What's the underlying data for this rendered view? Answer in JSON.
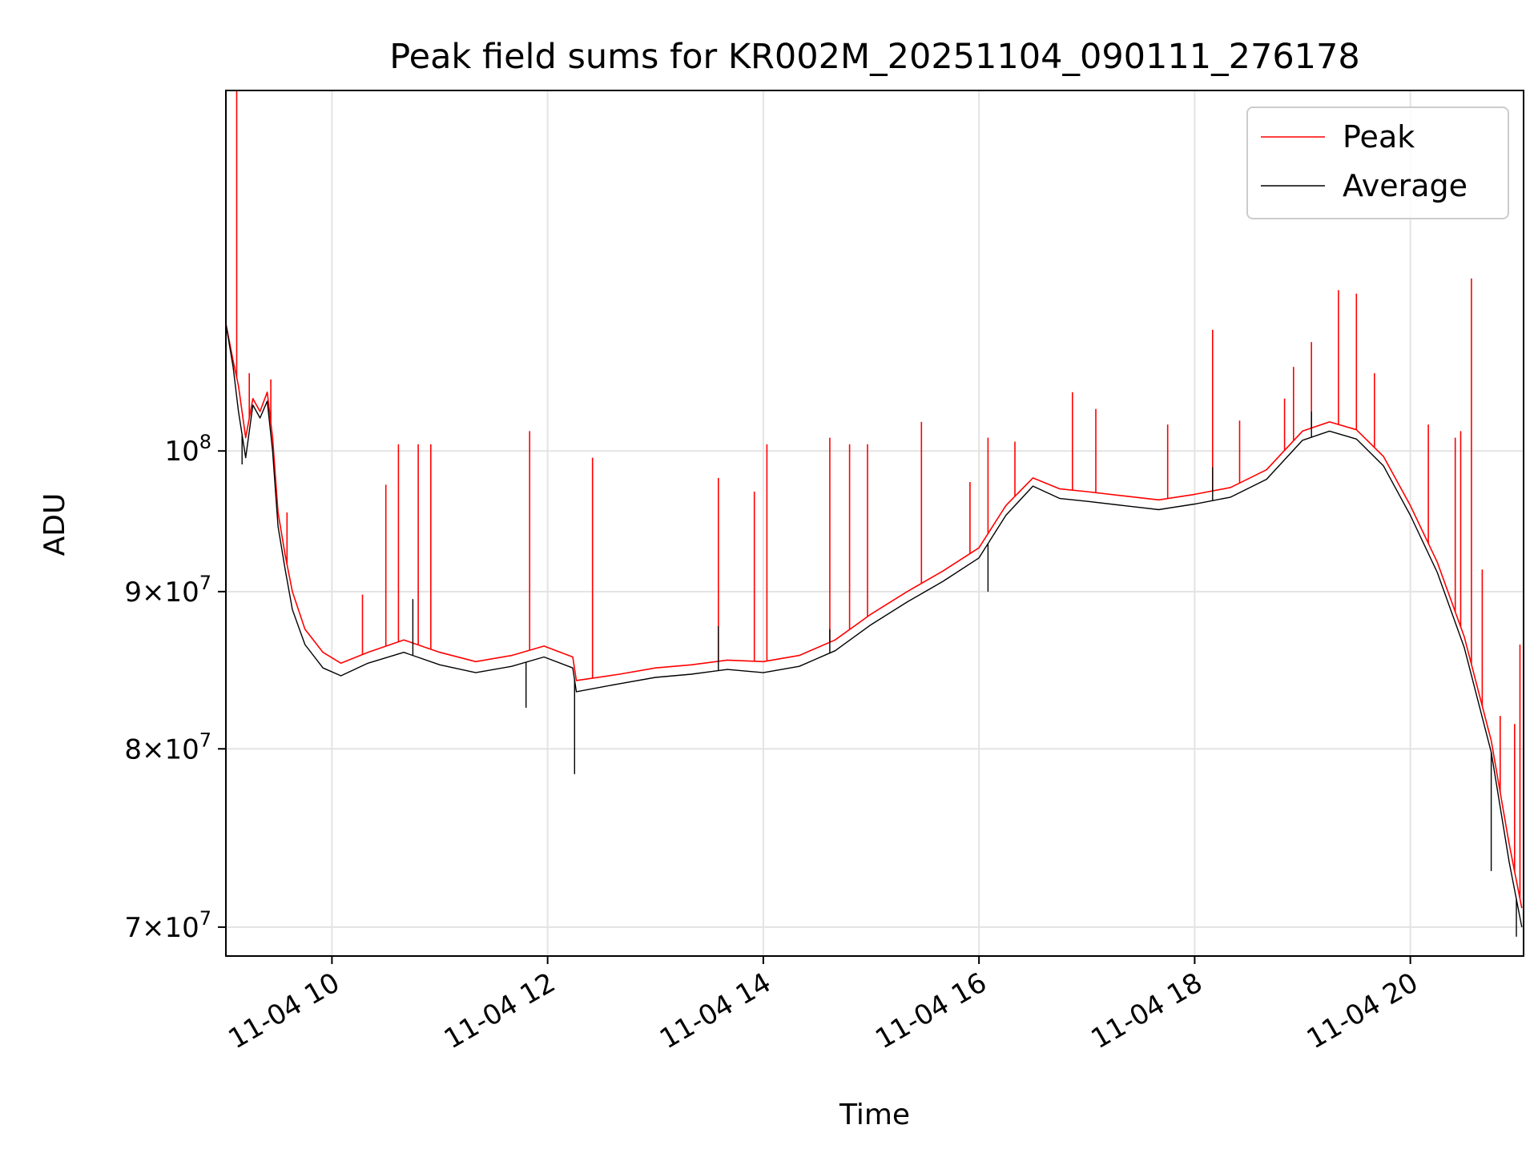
{
  "chart_data": {
    "type": "line",
    "title": "Peak field sums for KR002M_20251104_090111_276178",
    "xlabel": "Time",
    "ylabel": "ADU",
    "x_scale": "time",
    "y_scale": "log",
    "xlim": [
      "2025-11-04 09:01",
      "2025-11-04 21:03"
    ],
    "ylim": [
      68500000,
      131000000
    ],
    "x_ticks": [
      {
        "value": "2025-11-04 10:00",
        "label": "11-04 10"
      },
      {
        "value": "2025-11-04 12:00",
        "label": "11-04 12"
      },
      {
        "value": "2025-11-04 14:00",
        "label": "11-04 14"
      },
      {
        "value": "2025-11-04 16:00",
        "label": "11-04 16"
      },
      {
        "value": "2025-11-04 18:00",
        "label": "11-04 18"
      },
      {
        "value": "2025-11-04 20:00",
        "label": "11-04 20"
      }
    ],
    "y_ticks": [
      {
        "value": 70000000,
        "label_mant": "7",
        "label_exp": "7"
      },
      {
        "value": 80000000,
        "label_mant": "8",
        "label_exp": "7"
      },
      {
        "value": 90000000,
        "label_mant": "9",
        "label_exp": "7"
      },
      {
        "value": 100000000,
        "label_mant": "",
        "label_exp": "8"
      }
    ],
    "grid": true,
    "legend_position": "top-right",
    "series": [
      {
        "name": "Peak",
        "color": "#ff0000",
        "points": [
          [
            "2025-11-04 09:01",
            110000000
          ],
          [
            "2025-11-04 09:05",
            107000000
          ],
          [
            "2025-11-04 09:08",
            105000000
          ],
          [
            "2025-11-04 09:12",
            101000000
          ],
          [
            "2025-11-04 09:16",
            104000000
          ],
          [
            "2025-11-04 09:20",
            103000000
          ],
          [
            "2025-11-04 09:24",
            104500000
          ],
          [
            "2025-11-04 09:27",
            101000000
          ],
          [
            "2025-11-04 09:30",
            95500000
          ],
          [
            "2025-11-04 09:34",
            92500000
          ],
          [
            "2025-11-04 09:38",
            90000000
          ],
          [
            "2025-11-04 09:45",
            87500000
          ],
          [
            "2025-11-04 09:55",
            86000000
          ],
          [
            "2025-11-04 10:05",
            85300000
          ],
          [
            "2025-11-04 10:20",
            86000000
          ],
          [
            "2025-11-04 10:40",
            86800000
          ],
          [
            "2025-11-04 11:00",
            86000000
          ],
          [
            "2025-11-04 11:20",
            85400000
          ],
          [
            "2025-11-04 11:40",
            85800000
          ],
          [
            "2025-11-04 11:58",
            86400000
          ],
          [
            "2025-11-04 12:14",
            85700000
          ],
          [
            "2025-11-04 12:16",
            84200000
          ],
          [
            "2025-11-04 12:40",
            84600000
          ],
          [
            "2025-11-04 13:00",
            85000000
          ],
          [
            "2025-11-04 13:20",
            85200000
          ],
          [
            "2025-11-04 13:40",
            85500000
          ],
          [
            "2025-11-04 14:00",
            85400000
          ],
          [
            "2025-11-04 14:20",
            85800000
          ],
          [
            "2025-11-04 14:40",
            86800000
          ],
          [
            "2025-11-04 15:00",
            88500000
          ],
          [
            "2025-11-04 15:20",
            90000000
          ],
          [
            "2025-11-04 15:40",
            91400000
          ],
          [
            "2025-11-04 16:00",
            93000000
          ],
          [
            "2025-11-04 16:15",
            96000000
          ],
          [
            "2025-11-04 16:30",
            98000000
          ],
          [
            "2025-11-04 16:45",
            97200000
          ],
          [
            "2025-11-04 17:00",
            97000000
          ],
          [
            "2025-11-04 17:20",
            96700000
          ],
          [
            "2025-11-04 17:40",
            96400000
          ],
          [
            "2025-11-04 18:00",
            96800000
          ],
          [
            "2025-11-04 18:20",
            97300000
          ],
          [
            "2025-11-04 18:40",
            98600000
          ],
          [
            "2025-11-04 19:00",
            101500000
          ],
          [
            "2025-11-04 19:15",
            102200000
          ],
          [
            "2025-11-04 19:30",
            101600000
          ],
          [
            "2025-11-04 19:45",
            99600000
          ],
          [
            "2025-11-04 20:00",
            96000000
          ],
          [
            "2025-11-04 20:15",
            92000000
          ],
          [
            "2025-11-04 20:30",
            87000000
          ],
          [
            "2025-11-04 20:45",
            80500000
          ],
          [
            "2025-11-04 20:55",
            74500000
          ],
          [
            "2025-11-04 21:02",
            71000000
          ]
        ],
        "spikes": [
          [
            "2025-11-04 09:07",
            131000000
          ],
          [
            "2025-11-04 09:14",
            106000000
          ],
          [
            "2025-11-04 09:26",
            105500000
          ],
          [
            "2025-11-04 09:35",
            95500000
          ],
          [
            "2025-11-04 10:17",
            89800000
          ],
          [
            "2025-11-04 10:30",
            97500000
          ],
          [
            "2025-11-04 10:37",
            100500000
          ],
          [
            "2025-11-04 10:48",
            100500000
          ],
          [
            "2025-11-04 10:55",
            100500000
          ],
          [
            "2025-11-04 11:50",
            101500000
          ],
          [
            "2025-11-04 12:25",
            99500000
          ],
          [
            "2025-11-04 13:35",
            98000000
          ],
          [
            "2025-11-04 13:55",
            97000000
          ],
          [
            "2025-11-04 14:02",
            100500000
          ],
          [
            "2025-11-04 14:37",
            101000000
          ],
          [
            "2025-11-04 14:48",
            100500000
          ],
          [
            "2025-11-04 14:58",
            100500000
          ],
          [
            "2025-11-04 15:28",
            102200000
          ],
          [
            "2025-11-04 15:55",
            97700000
          ],
          [
            "2025-11-04 16:05",
            101000000
          ],
          [
            "2025-11-04 16:20",
            100700000
          ],
          [
            "2025-11-04 16:52",
            104500000
          ],
          [
            "2025-11-04 17:05",
            103200000
          ],
          [
            "2025-11-04 17:45",
            102000000
          ],
          [
            "2025-11-04 18:10",
            109500000
          ],
          [
            "2025-11-04 18:25",
            102300000
          ],
          [
            "2025-11-04 18:50",
            104000000
          ],
          [
            "2025-11-04 18:55",
            106500000
          ],
          [
            "2025-11-04 19:05",
            108500000
          ],
          [
            "2025-11-04 19:20",
            112800000
          ],
          [
            "2025-11-04 19:30",
            112500000
          ],
          [
            "2025-11-04 19:40",
            106000000
          ],
          [
            "2025-11-04 20:10",
            102000000
          ],
          [
            "2025-11-04 20:25",
            101000000
          ],
          [
            "2025-11-04 20:28",
            101500000
          ],
          [
            "2025-11-04 20:34",
            113800000
          ],
          [
            "2025-11-04 20:40",
            91500000
          ],
          [
            "2025-11-04 20:50",
            82000000
          ],
          [
            "2025-11-04 20:58",
            81500000
          ],
          [
            "2025-11-04 21:01",
            86500000
          ]
        ]
      },
      {
        "name": "Average",
        "color": "#000000",
        "points": [
          [
            "2025-11-04 09:01",
            110000000
          ],
          [
            "2025-11-04 09:05",
            106500000
          ],
          [
            "2025-11-04 09:08",
            103000000
          ],
          [
            "2025-11-04 09:12",
            99500000
          ],
          [
            "2025-11-04 09:16",
            103500000
          ],
          [
            "2025-11-04 09:20",
            102500000
          ],
          [
            "2025-11-04 09:24",
            103800000
          ],
          [
            "2025-11-04 09:27",
            100000000
          ],
          [
            "2025-11-04 09:30",
            94500000
          ],
          [
            "2025-11-04 09:34",
            91500000
          ],
          [
            "2025-11-04 09:38",
            88800000
          ],
          [
            "2025-11-04 09:45",
            86500000
          ],
          [
            "2025-11-04 09:55",
            85000000
          ],
          [
            "2025-11-04 10:05",
            84500000
          ],
          [
            "2025-11-04 10:20",
            85300000
          ],
          [
            "2025-11-04 10:40",
            86000000
          ],
          [
            "2025-11-04 11:00",
            85200000
          ],
          [
            "2025-11-04 11:20",
            84700000
          ],
          [
            "2025-11-04 11:40",
            85100000
          ],
          [
            "2025-11-04 11:58",
            85700000
          ],
          [
            "2025-11-04 12:14",
            85000000
          ],
          [
            "2025-11-04 12:16",
            83500000
          ],
          [
            "2025-11-04 12:40",
            84000000
          ],
          [
            "2025-11-04 13:00",
            84400000
          ],
          [
            "2025-11-04 13:20",
            84600000
          ],
          [
            "2025-11-04 13:40",
            84900000
          ],
          [
            "2025-11-04 14:00",
            84700000
          ],
          [
            "2025-11-04 14:20",
            85100000
          ],
          [
            "2025-11-04 14:40",
            86100000
          ],
          [
            "2025-11-04 15:00",
            87800000
          ],
          [
            "2025-11-04 15:20",
            89300000
          ],
          [
            "2025-11-04 15:40",
            90700000
          ],
          [
            "2025-11-04 16:00",
            92300000
          ],
          [
            "2025-11-04 16:15",
            95300000
          ],
          [
            "2025-11-04 16:30",
            97400000
          ],
          [
            "2025-11-04 16:45",
            96500000
          ],
          [
            "2025-11-04 17:00",
            96300000
          ],
          [
            "2025-11-04 17:20",
            96000000
          ],
          [
            "2025-11-04 17:40",
            95700000
          ],
          [
            "2025-11-04 18:00",
            96100000
          ],
          [
            "2025-11-04 18:20",
            96600000
          ],
          [
            "2025-11-04 18:40",
            97900000
          ],
          [
            "2025-11-04 19:00",
            100800000
          ],
          [
            "2025-11-04 19:15",
            101500000
          ],
          [
            "2025-11-04 19:30",
            100900000
          ],
          [
            "2025-11-04 19:45",
            98900000
          ],
          [
            "2025-11-04 20:00",
            95300000
          ],
          [
            "2025-11-04 20:15",
            91300000
          ],
          [
            "2025-11-04 20:30",
            86300000
          ],
          [
            "2025-11-04 20:45",
            79800000
          ],
          [
            "2025-11-04 20:55",
            73500000
          ],
          [
            "2025-11-04 21:02",
            70000000
          ]
        ],
        "spikes": [
          [
            "2025-11-04 09:10",
            99000000
          ],
          [
            "2025-11-04 10:45",
            89500000
          ],
          [
            "2025-11-04 11:48",
            82500000
          ],
          [
            "2025-11-04 12:15",
            78500000
          ],
          [
            "2025-11-04 13:35",
            87700000
          ],
          [
            "2025-11-04 14:37",
            87500000
          ],
          [
            "2025-11-04 16:05",
            90000000
          ],
          [
            "2025-11-04 18:10",
            98800000
          ],
          [
            "2025-11-04 19:05",
            103000000
          ],
          [
            "2025-11-04 20:45",
            73000000
          ],
          [
            "2025-11-04 20:59",
            69500000
          ]
        ]
      }
    ]
  }
}
